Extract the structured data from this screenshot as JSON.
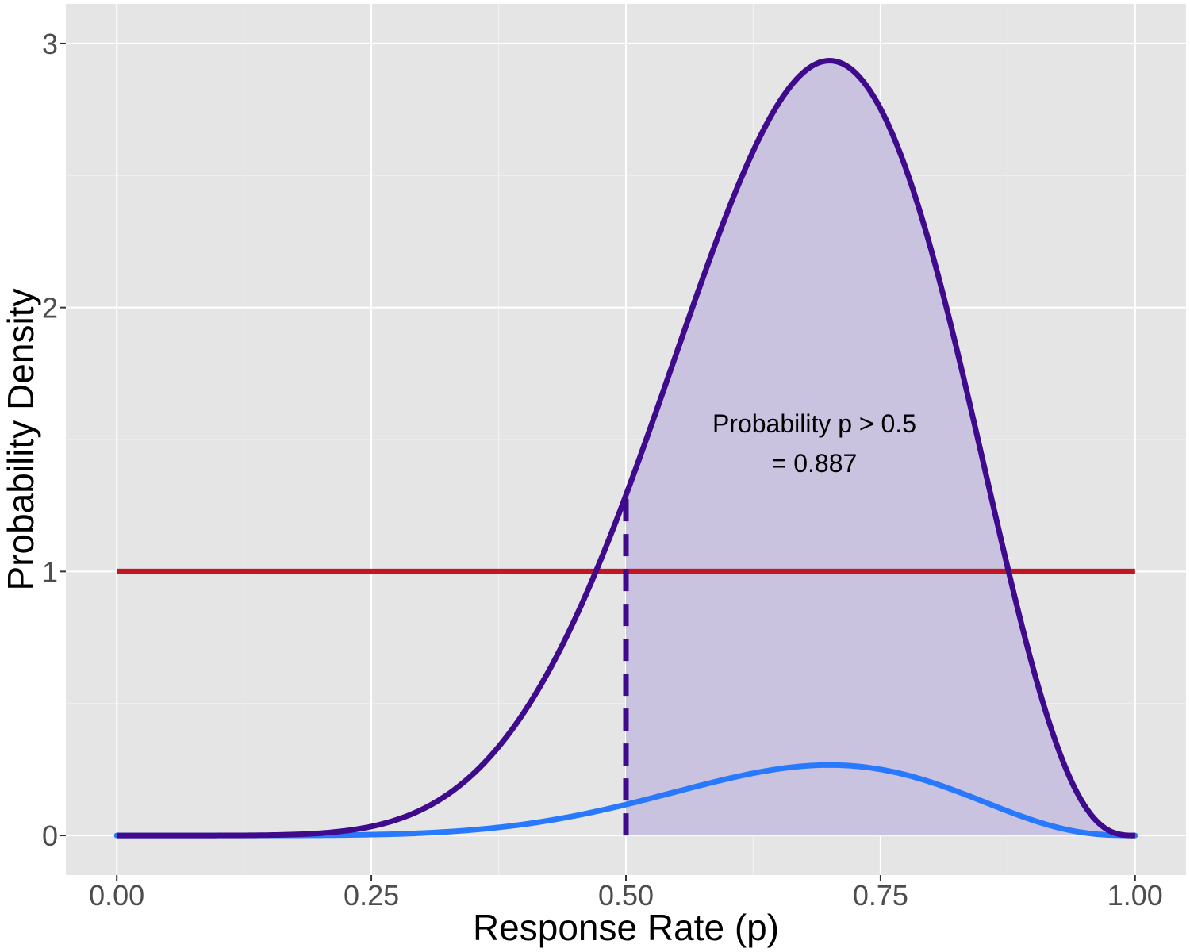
{
  "chart_data": {
    "type": "line",
    "xlabel": "Response Rate (p)",
    "ylabel": "Probability Density",
    "xlim": [
      -0.05,
      1.05
    ],
    "ylim": [
      -0.15,
      3.15
    ],
    "x_ticks": [
      0.0,
      0.25,
      0.5,
      0.75,
      1.0
    ],
    "x_tick_labels": [
      "0.00",
      "0.25",
      "0.50",
      "0.75",
      "1.00"
    ],
    "y_ticks": [
      0,
      1,
      2,
      3
    ],
    "y_tick_labels": [
      "0",
      "1",
      "2",
      "3"
    ],
    "grid": true,
    "background": "#e5e5e5",
    "series": [
      {
        "kind": "posterior",
        "color": "#3f0a8c",
        "distribution": {
          "family": "beta",
          "alpha": 8,
          "beta": 4
        },
        "peak": [
          0.7,
          2.94
        ]
      },
      {
        "kind": "prior",
        "color": "#c41525",
        "distribution": {
          "family": "uniform",
          "min": 0,
          "max": 1
        },
        "y": 1.0
      },
      {
        "kind": "likelihood",
        "color": "#2979ff",
        "distribution": {
          "family": "scaled_beta",
          "alpha": 8,
          "beta": 4,
          "scale": 0.0909
        },
        "peak": [
          0.7,
          0.267
        ]
      }
    ],
    "shaded_region": {
      "from": 0.5,
      "to": 1.0,
      "under": "posterior",
      "color": "#c9c3e0"
    },
    "threshold_line": {
      "x": 0.5,
      "style": "dashed",
      "color": "#3f0a8c"
    },
    "annotation": {
      "line1": "Probability p > 0.5",
      "line2": "= 0.887",
      "x": 0.685,
      "y1": 1.56,
      "y2": 1.41
    }
  }
}
